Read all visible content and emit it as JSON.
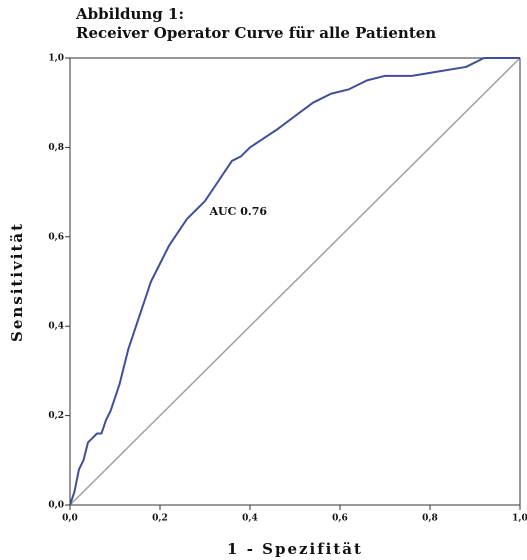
{
  "chart_data": {
    "type": "line",
    "title": [
      "Abbildung 1:",
      "Receiver Operator Curve für alle Patienten"
    ],
    "xlabel": "1 - Spezifität",
    "ylabel": "Sensitivität",
    "annotation": "AUC 0.76",
    "x": [
      0,
      0.01,
      0.02,
      0.03,
      0.04,
      0.06,
      0.07,
      0.08,
      0.09,
      0.1,
      0.11,
      0.12,
      0.13,
      0.14,
      0.15,
      0.16,
      0.17,
      0.18,
      0.2,
      0.22,
      0.24,
      0.26,
      0.28,
      0.3,
      0.32,
      0.34,
      0.36,
      0.38,
      0.4,
      0.43,
      0.46,
      0.5,
      0.54,
      0.58,
      0.62,
      0.66,
      0.7,
      0.76,
      0.82,
      0.88,
      0.92,
      1.0
    ],
    "series": [
      {
        "color": "#3f4f9f",
        "values": [
          0,
          0.03,
          0.08,
          0.1,
          0.14,
          0.16,
          0.16,
          0.19,
          0.21,
          0.24,
          0.27,
          0.31,
          0.35,
          0.38,
          0.41,
          0.44,
          0.47,
          0.5,
          0.54,
          0.58,
          0.61,
          0.64,
          0.66,
          0.68,
          0.71,
          0.74,
          0.77,
          0.78,
          0.8,
          0.82,
          0.84,
          0.87,
          0.9,
          0.92,
          0.93,
          0.95,
          0.96,
          0.96,
          0.97,
          0.98,
          1.0,
          1.0
        ]
      }
    ],
    "reference_color": "#a0a0a0",
    "xlim": [
      0,
      1
    ],
    "ylim": [
      0,
      1
    ],
    "xticks": [
      {
        "value": 0,
        "label": "0,0"
      },
      {
        "value": 0.2,
        "label": "0,2"
      },
      {
        "value": 0.4,
        "label": "0,4"
      },
      {
        "value": 0.6,
        "label": "0,6"
      },
      {
        "value": 0.8,
        "label": "0,8"
      },
      {
        "value": 1,
        "label": "1,0"
      }
    ],
    "yticks": [
      {
        "value": 0,
        "label": "0,0"
      },
      {
        "value": 0.2,
        "label": "0,2"
      },
      {
        "value": 0.4,
        "label": "0,4"
      },
      {
        "value": 0.6,
        "label": "0,6"
      },
      {
        "value": 0.8,
        "label": "0,8"
      },
      {
        "value": 1,
        "label": "1,0"
      }
    ],
    "grid": false
  }
}
